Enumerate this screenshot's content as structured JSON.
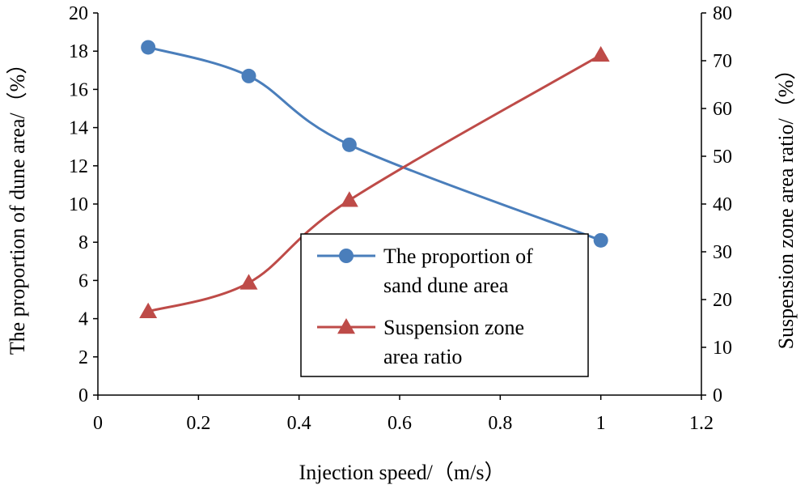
{
  "chart_data": {
    "type": "line",
    "x": [
      0.1,
      0.3,
      0.5,
      1.0
    ],
    "xlabel": "Injection speed/（m/s）",
    "xlim": [
      0,
      1.2
    ],
    "xticks": [
      "0",
      "0.2",
      "0.4",
      "0.6",
      "0.8",
      "1",
      "1.2"
    ],
    "y_left": {
      "label": "The proportion of dune  area/（%）",
      "lim": [
        0,
        20
      ],
      "ticks": [
        "0",
        "2",
        "4",
        "6",
        "8",
        "10",
        "12",
        "14",
        "16",
        "18",
        "20"
      ]
    },
    "y_right": {
      "label": "Suspension zone area ratio/（%）",
      "lim": [
        0,
        80
      ],
      "ticks": [
        "0",
        "10",
        "20",
        "30",
        "40",
        "50",
        "60",
        "70",
        "80"
      ]
    },
    "series": [
      {
        "name": "The proportion of sand dune area",
        "legend_lines": [
          "The proportion of",
          "sand dune area"
        ],
        "axis": "left",
        "marker": "circle",
        "color": "#4a7ebb",
        "values": [
          18.2,
          16.7,
          13.1,
          8.1
        ]
      },
      {
        "name": "Suspension zone area ratio",
        "legend_lines": [
          "Suspension zone",
          "area ratio"
        ],
        "axis": "right",
        "marker": "triangle",
        "color": "#be4b48",
        "values": [
          17.5,
          23.5,
          40.8,
          71.2
        ]
      }
    ],
    "legend": "center-right",
    "grid": false
  }
}
